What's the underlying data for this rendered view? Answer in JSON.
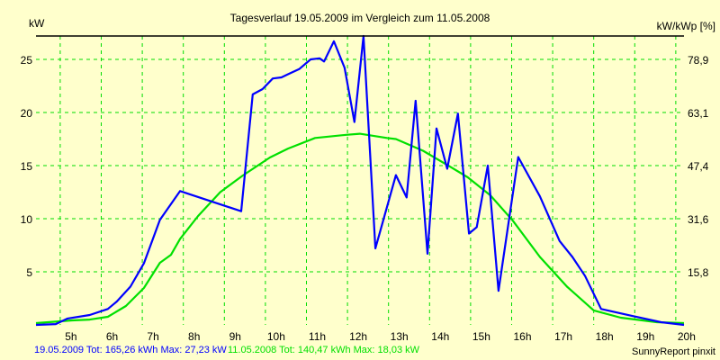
{
  "chart_data": {
    "type": "line",
    "title": "Tagesverlauf 19.05.2009 im Vergleich zum 11.05.2008",
    "ylabel_left": "kW",
    "ylabel_right": "kW/kWp [%]",
    "xlim": [
      4.41,
      20.2
    ],
    "ylim": [
      0,
      27.2
    ],
    "grid": true,
    "x_ticks": [
      {
        "value": 5,
        "label": "5h"
      },
      {
        "value": 6,
        "label": "6h"
      },
      {
        "value": 7,
        "label": "7h"
      },
      {
        "value": 8,
        "label": "8h"
      },
      {
        "value": 9,
        "label": "9h"
      },
      {
        "value": 10,
        "label": "10h"
      },
      {
        "value": 11,
        "label": "11h"
      },
      {
        "value": 12,
        "label": "12h"
      },
      {
        "value": 13,
        "label": "13h"
      },
      {
        "value": 14,
        "label": "14h"
      },
      {
        "value": 15,
        "label": "15h"
      },
      {
        "value": 16,
        "label": "16h"
      },
      {
        "value": 17,
        "label": "17h"
      },
      {
        "value": 18,
        "label": "18h"
      },
      {
        "value": 19,
        "label": "19h"
      },
      {
        "value": 20,
        "label": "20h"
      }
    ],
    "y_ticks_left": [
      {
        "value": 5,
        "label": "5"
      },
      {
        "value": 10,
        "label": "10"
      },
      {
        "value": 15,
        "label": "15"
      },
      {
        "value": 20,
        "label": "20"
      },
      {
        "value": 25,
        "label": "25"
      }
    ],
    "y_ticks_right": [
      {
        "value": 5,
        "label": "15,8"
      },
      {
        "value": 10,
        "label": "31,6"
      },
      {
        "value": 15,
        "label": "47,4"
      },
      {
        "value": 20,
        "label": "63,1"
      },
      {
        "value": 25,
        "label": "78,9"
      }
    ],
    "series": [
      {
        "name": "19.05.2009",
        "color": "#0000ff",
        "legend": "19.05.2009 Tot: 165,26 kWh Max: 27,23 kW",
        "x": [
          4.41,
          4.89,
          5.18,
          5.72,
          6.16,
          6.38,
          6.71,
          7.04,
          7.43,
          7.92,
          9.41,
          9.69,
          9.93,
          10.18,
          10.39,
          10.55,
          10.83,
          11.1,
          11.32,
          11.43,
          11.67,
          11.93,
          12.17,
          12.39,
          12.68,
          13.18,
          13.44,
          13.66,
          13.95,
          14.17,
          14.43,
          14.69,
          14.96,
          15.15,
          15.42,
          15.68,
          16.16,
          16.69,
          17.17,
          17.48,
          17.79,
          18.18,
          18.88,
          19.64,
          20.2
        ],
        "y": [
          0,
          0.08,
          0.6,
          0.93,
          1.5,
          2.2,
          3.6,
          5.8,
          9.9,
          12.6,
          10.7,
          21.7,
          22.2,
          23.2,
          23.3,
          23.6,
          24.1,
          25,
          25.1,
          24.8,
          26.7,
          24.2,
          19.1,
          27.2,
          7.2,
          14.1,
          12,
          21.1,
          6.7,
          18.5,
          14.7,
          19.9,
          8.6,
          9.2,
          15,
          3.2,
          15.8,
          12.1,
          7.9,
          6.4,
          4.6,
          1.5,
          0.9,
          0.25,
          0
        ]
      },
      {
        "name": "11.05.2008",
        "color": "#00e000",
        "legend": "11.05.2008 Tot: 140,47 kWh Max: 18,03 kW",
        "x": [
          4.41,
          5.29,
          5.72,
          6.16,
          6.6,
          7.04,
          7.43,
          7.7,
          7.92,
          8.36,
          8.9,
          9.45,
          10.11,
          10.55,
          11.21,
          11.97,
          12.3,
          12.96,
          13.18,
          13.84,
          14.5,
          14.93,
          15.48,
          16.03,
          16.69,
          17.35,
          18.0,
          18.66,
          19.54,
          20.2
        ],
        "y": [
          0.17,
          0.42,
          0.5,
          0.76,
          1.78,
          3.47,
          5.85,
          6.6,
          8.1,
          10.25,
          12.5,
          14.07,
          15.76,
          16.6,
          17.6,
          17.9,
          18.0,
          17.6,
          17.5,
          16.4,
          14.9,
          13.9,
          12.2,
          9.8,
          6.4,
          3.6,
          1.36,
          0.68,
          0.25,
          0.17
        ]
      }
    ],
    "footer_right": "SunnyReport pinxit"
  }
}
